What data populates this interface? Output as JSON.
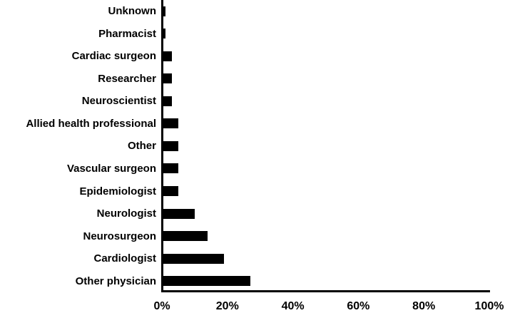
{
  "chart_data": {
    "type": "bar",
    "orientation": "horizontal",
    "title": "",
    "categories": [
      "Unknown",
      "Pharmacist",
      "Cardiac surgeon",
      "Researcher",
      "Neuroscientist",
      "Allied health professional",
      "Other",
      "Vascular surgeon",
      "Epidemiologist",
      "Neurologist",
      "Neurosurgeon",
      "Cardiologist",
      "Other physician"
    ],
    "values": [
      1,
      1,
      3,
      3,
      3,
      5,
      5,
      5,
      5,
      10,
      14,
      19,
      27
    ],
    "value_unit": "%",
    "x_tick_labels": [
      "0%",
      "20%",
      "40%",
      "60%",
      "80%",
      "100%"
    ],
    "xlim": [
      0,
      100
    ],
    "xlabel": "",
    "ylabel": "",
    "grid": false,
    "legend": false,
    "bar_color": "#000000",
    "axis_color": "#000000",
    "background_color": "#ffffff"
  }
}
